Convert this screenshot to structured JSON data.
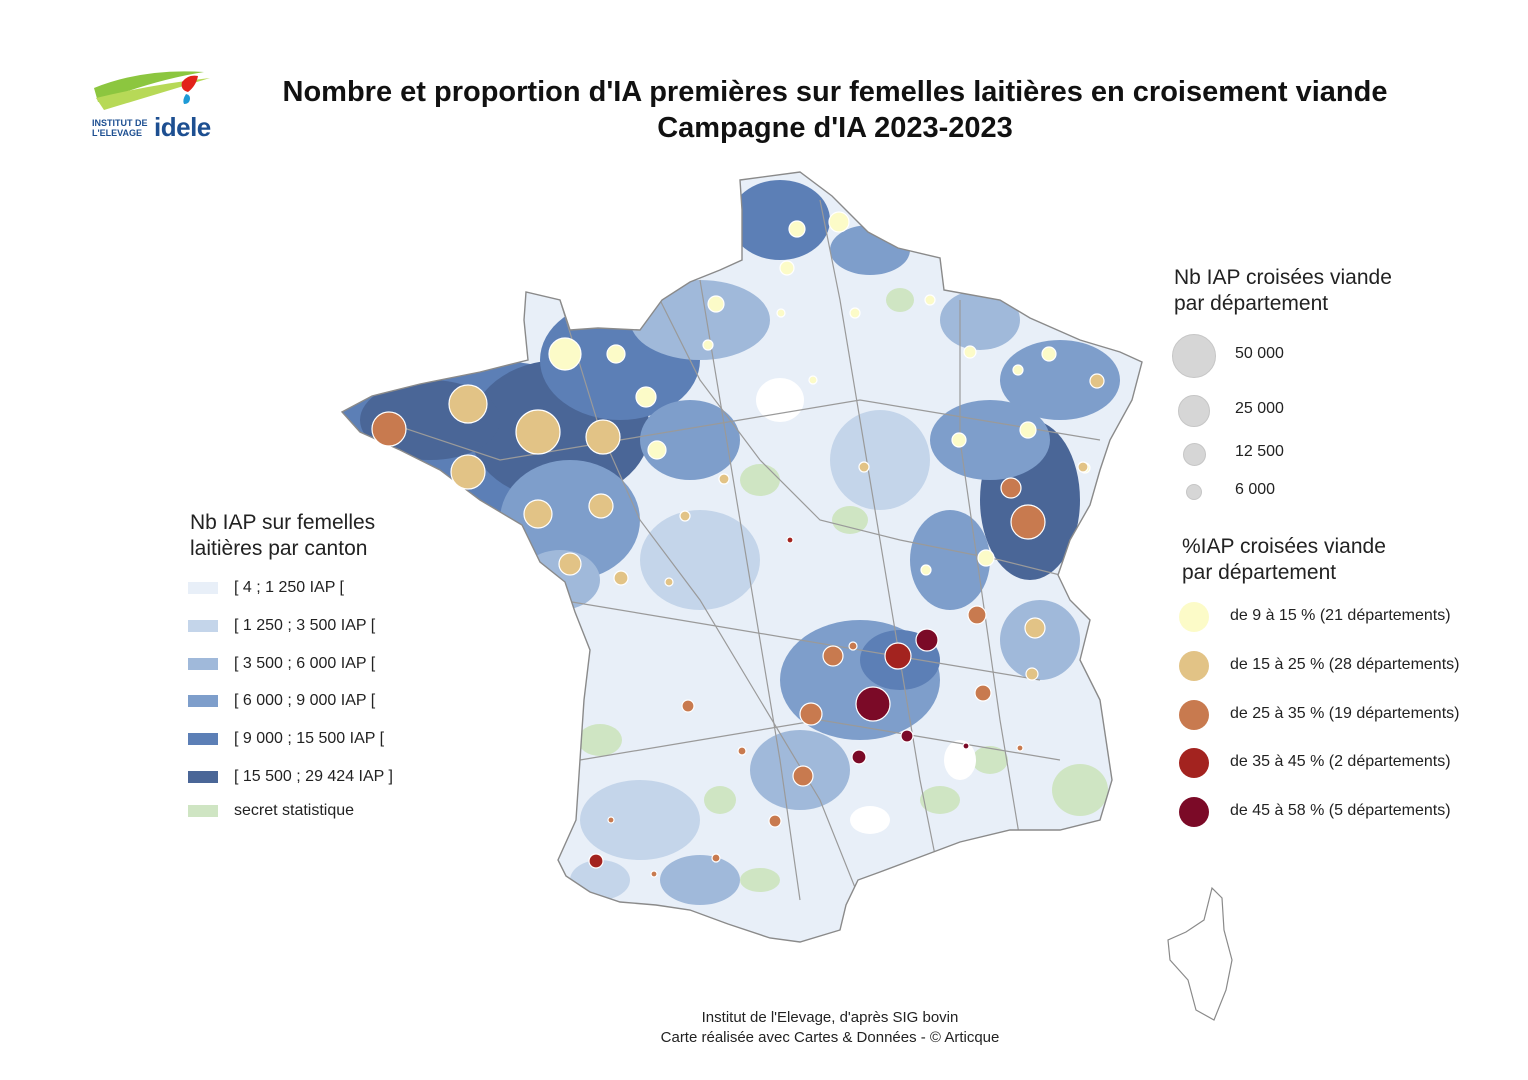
{
  "logo": {
    "line1": "INSTITUT DE",
    "line2": "L'ELEVAGE",
    "brand": "idele",
    "colors": {
      "green": "#8cc63f",
      "red": "#e2231a",
      "blue": "#1d4f91"
    }
  },
  "title": {
    "line1": "Nombre et proportion d'IA premières sur femelles laitières en croisement viande",
    "line2": "Campagne d'IA 2023-2023"
  },
  "canton_legend": {
    "title_line1": "Nb IAP sur femelles",
    "title_line2": "laitières par canton",
    "classes": [
      {
        "label": "[ 4 ; 1 250 IAP [",
        "color": "#e8eff8"
      },
      {
        "label": "[ 1 250 ; 3 500 IAP [",
        "color": "#c4d5ea"
      },
      {
        "label": "[ 3 500 ; 6 000 IAP [",
        "color": "#a0b9da"
      },
      {
        "label": "[ 6 000 ; 9 000 IAP [",
        "color": "#7e9ecb"
      },
      {
        "label": "[ 9 000 ; 15 500 IAP [",
        "color": "#5c7fb6"
      },
      {
        "label": "[ 15 500 ; 29 424 IAP ]",
        "color": "#4a6697"
      },
      {
        "label": "secret statistique",
        "color": "#cfe5c3"
      }
    ]
  },
  "size_legend": {
    "title_line1": "Nb IAP croisées viande",
    "title_line2": "par département",
    "items": [
      {
        "label": "50 000",
        "value": 50000
      },
      {
        "label": "25 000",
        "value": 25000
      },
      {
        "label": "12 500",
        "value": 12500
      },
      {
        "label": "6 000",
        "value": 6000
      }
    ],
    "circle_color": "#d6d6d6"
  },
  "pct_legend": {
    "title_line1": "%IAP croisées viande",
    "title_line2": "par département",
    "classes": [
      {
        "label": "de 9 à 15 % (21 départements)",
        "color": "#fcfbc8"
      },
      {
        "label": "de 15 à 25 % (28 départements)",
        "color": "#e2c386"
      },
      {
        "label": "de 25 à 35 % (19 départements)",
        "color": "#c87a4f"
      },
      {
        "label": "de 35 à 45 % (2 départements)",
        "color": "#a3231f"
      },
      {
        "label": "de 45 à 58 % (5 départements)",
        "color": "#7b0a27"
      }
    ]
  },
  "source": {
    "line1": "Institut de l'Elevage, d'après SIG bovin",
    "line2": "Carte réalisée avec Cartes & Données - © Articque"
  }
}
